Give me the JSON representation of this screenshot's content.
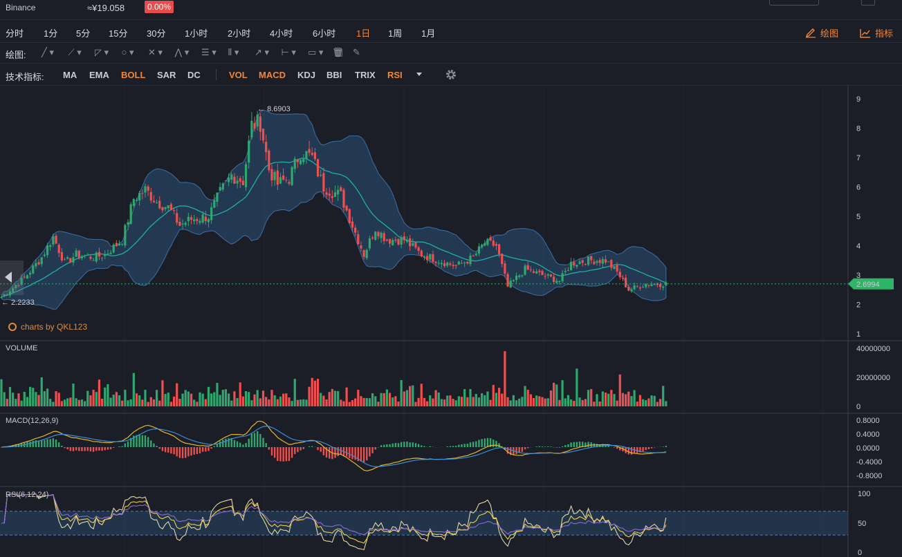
{
  "header": {
    "exchange": "Binance",
    "price_cny": "≈¥19.058",
    "change_pct": "0.00%"
  },
  "intervals": {
    "items": [
      "分时",
      "1分",
      "5分",
      "15分",
      "30分",
      "1小时",
      "2小时",
      "4小时",
      "6小时",
      "1日",
      "1周",
      "1月"
    ],
    "active": "1日",
    "draw_label": "绘图",
    "indicator_label": "指标"
  },
  "drawbar": {
    "label": "绘图:",
    "tools": [
      "line-tool-icon",
      "ray-tool-icon",
      "channel-tool-icon",
      "circle-tool-icon",
      "fib-tool-icon",
      "pattern-tool-icon",
      "fib-levels-icon",
      "gann-icon",
      "arrow-icon",
      "measure-icon",
      "callout-icon",
      "bars-icon",
      "trash-icon",
      "eraser-icon"
    ]
  },
  "indicators": {
    "label": "技术指标:",
    "main": [
      {
        "name": "MA",
        "on": false
      },
      {
        "name": "EMA",
        "on": false
      },
      {
        "name": "BOLL",
        "on": true
      },
      {
        "name": "SAR",
        "on": false
      },
      {
        "name": "DC",
        "on": false
      }
    ],
    "sub": [
      {
        "name": "VOL",
        "on": true
      },
      {
        "name": "MACD",
        "on": true
      },
      {
        "name": "KDJ",
        "on": false
      },
      {
        "name": "BBI",
        "on": false
      },
      {
        "name": "TRIX",
        "on": false
      },
      {
        "name": "RSI",
        "on": true
      }
    ]
  },
  "panels": {
    "volume_title": "VOLUME",
    "macd_title": "MACD(12,26,9)",
    "rsi_title": "RSI(6,12,24)"
  },
  "brand": "charts by QKL123",
  "chart_data": {
    "type": "candlestick",
    "price_axis_ticks": [
      "9",
      "8",
      "7",
      "6",
      "5",
      "4",
      "3",
      "2",
      "1"
    ],
    "volume_axis_ticks": [
      "40000000",
      "20000000",
      "0"
    ],
    "macd_axis_ticks": [
      "0.8000",
      "0.4000",
      "0.0000",
      "-0.4000",
      "-0.8000"
    ],
    "rsi_axis_ticks": [
      "100",
      "50",
      "0"
    ],
    "price_ylim": [
      1,
      9
    ],
    "volume_ylim": [
      0,
      40000000
    ],
    "macd_ylim": [
      -0.8,
      0.8
    ],
    "rsi_ylim": [
      0,
      100
    ],
    "rsi_band": [
      30,
      70
    ],
    "high_label": "8.6903",
    "low_label": "2.2233",
    "last_price": "2.6994",
    "last_price_value": 2.6994,
    "close_waypoints": [
      [
        0,
        2.25
      ],
      [
        8,
        2.9
      ],
      [
        14,
        3.6
      ],
      [
        18,
        4.3
      ],
      [
        22,
        3.4
      ],
      [
        26,
        3.7
      ],
      [
        32,
        3.6
      ],
      [
        36,
        3.7
      ],
      [
        42,
        4.2
      ],
      [
        46,
        5.6
      ],
      [
        50,
        5.9
      ],
      [
        54,
        5.5
      ],
      [
        58,
        5.3
      ],
      [
        62,
        4.7
      ],
      [
        66,
        4.9
      ],
      [
        72,
        5.0
      ],
      [
        76,
        5.8
      ],
      [
        80,
        6.4
      ],
      [
        84,
        6.2
      ],
      [
        87,
        8.1
      ],
      [
        90,
        8.2
      ],
      [
        93,
        6.6
      ],
      [
        96,
        6.1
      ],
      [
        100,
        6.3
      ],
      [
        104,
        7.2
      ],
      [
        108,
        7.0
      ],
      [
        112,
        6.0
      ],
      [
        118,
        5.7
      ],
      [
        122,
        4.7
      ],
      [
        126,
        3.7
      ],
      [
        130,
        4.6
      ],
      [
        134,
        4.2
      ],
      [
        140,
        4.2
      ],
      [
        146,
        3.7
      ],
      [
        152,
        3.5
      ],
      [
        158,
        3.3
      ],
      [
        164,
        3.6
      ],
      [
        168,
        4.1
      ],
      [
        172,
        4.0
      ],
      [
        176,
        2.6
      ],
      [
        182,
        3.2
      ],
      [
        188,
        3.0
      ],
      [
        194,
        2.8
      ],
      [
        198,
        3.4
      ],
      [
        204,
        3.5
      ],
      [
        210,
        3.5
      ],
      [
        214,
        3.1
      ],
      [
        218,
        2.5
      ],
      [
        224,
        2.7
      ],
      [
        230,
        2.7
      ]
    ],
    "volume_spikes": [
      [
        175,
        38000000
      ],
      [
        200,
        26000000
      ],
      [
        215,
        22000000
      ],
      [
        14,
        20000000
      ],
      [
        46,
        23000000
      ],
      [
        110,
        19000000
      ]
    ]
  },
  "colors": {
    "up": "#2fa86e",
    "down": "#ef4f4f",
    "accent": "#f0873a",
    "boll_mid": "#1fb0a6",
    "boll_band": "#2f5a8a",
    "macd_dif": "#e6b62e",
    "macd_dea": "#3b8fd6",
    "rsi6": "#e7d7a5",
    "rsi12": "#f0d04a",
    "rsi24": "#8a6cd8",
    "last_price_bg": "#2fb567"
  }
}
